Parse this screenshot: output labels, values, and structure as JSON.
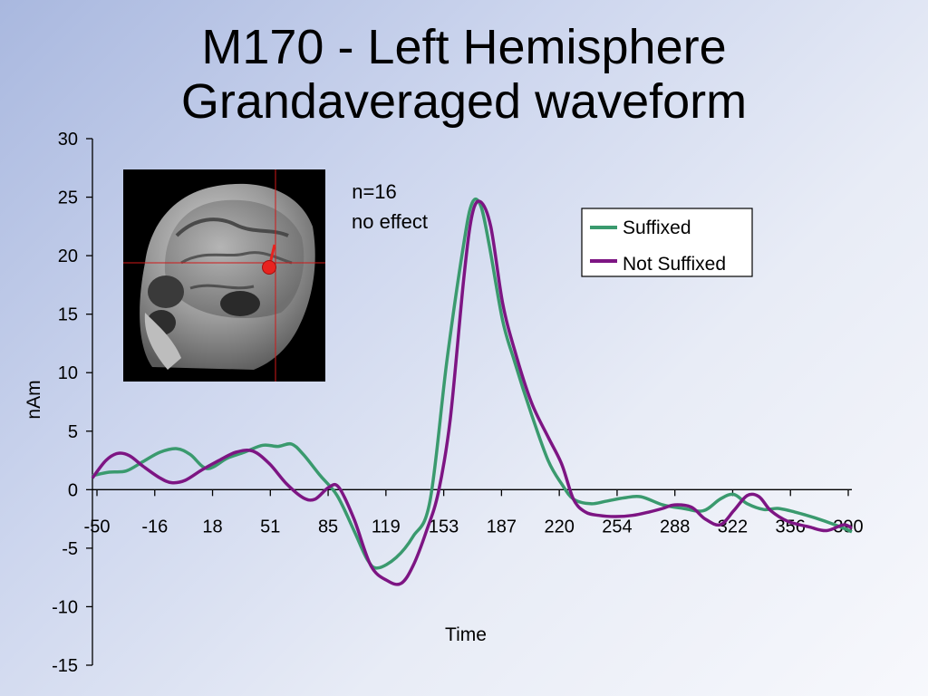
{
  "slide": {
    "title_line1": "M170 - Left Hemisphere",
    "title_line2": "Grandaveraged waveform"
  },
  "annotation": {
    "line1": "n=16",
    "line2": "no effect"
  },
  "brain_image": {
    "icon": "mri-brain-sagittal-icon",
    "marker_color": "#e8231f",
    "crosshair_color": "#d01818"
  },
  "chart_data": {
    "type": "line",
    "title": "",
    "xlabel": "Time",
    "ylabel": "nAm",
    "categories": [
      "-50",
      "-16",
      "18",
      "51",
      "85",
      "119",
      "153",
      "187",
      "220",
      "254",
      "288",
      "322",
      "356",
      "390"
    ],
    "xlim": [
      -50,
      400
    ],
    "ylim": [
      -15,
      30
    ],
    "yticks": [
      -15,
      -10,
      -5,
      0,
      5,
      10,
      15,
      20,
      25,
      30
    ],
    "grid": false,
    "legend_position": "right",
    "series": [
      {
        "name": "Suffixed",
        "color": "#3a9a6e",
        "points": [
          [
            -50,
            1.2
          ],
          [
            -40,
            1.5
          ],
          [
            -30,
            1.6
          ],
          [
            -20,
            2.4
          ],
          [
            -10,
            3.2
          ],
          [
            0,
            3.5
          ],
          [
            8,
            3.0
          ],
          [
            18,
            1.8
          ],
          [
            30,
            2.7
          ],
          [
            40,
            3.2
          ],
          [
            51,
            3.8
          ],
          [
            60,
            3.7
          ],
          [
            68,
            3.9
          ],
          [
            75,
            3.0
          ],
          [
            85,
            1.2
          ],
          [
            95,
            -0.5
          ],
          [
            105,
            -3.5
          ],
          [
            113,
            -6.0
          ],
          [
            119,
            -6.7
          ],
          [
            130,
            -5.8
          ],
          [
            140,
            -4.0
          ],
          [
            150,
            -1.0
          ],
          [
            160,
            11.0
          ],
          [
            170,
            21.0
          ],
          [
            175,
            24.5
          ],
          [
            180,
            24.3
          ],
          [
            185,
            21.0
          ],
          [
            193,
            14.5
          ],
          [
            200,
            11.0
          ],
          [
            210,
            6.5
          ],
          [
            220,
            2.5
          ],
          [
            228,
            0.5
          ],
          [
            235,
            -0.8
          ],
          [
            245,
            -1.2
          ],
          [
            254,
            -1.0
          ],
          [
            265,
            -0.7
          ],
          [
            275,
            -0.6
          ],
          [
            288,
            -1.3
          ],
          [
            300,
            -1.6
          ],
          [
            312,
            -1.8
          ],
          [
            322,
            -0.8
          ],
          [
            330,
            -0.4
          ],
          [
            338,
            -1.2
          ],
          [
            348,
            -1.7
          ],
          [
            356,
            -1.6
          ],
          [
            366,
            -1.9
          ],
          [
            378,
            -2.4
          ],
          [
            390,
            -3.0
          ],
          [
            400,
            -3.6
          ]
        ]
      },
      {
        "name": "Not Suffixed",
        "color": "#7d1583",
        "points": [
          [
            -50,
            1.0
          ],
          [
            -42,
            2.5
          ],
          [
            -35,
            3.1
          ],
          [
            -28,
            2.9
          ],
          [
            -20,
            2.0
          ],
          [
            -10,
            1.0
          ],
          [
            -3,
            0.6
          ],
          [
            5,
            0.8
          ],
          [
            15,
            1.7
          ],
          [
            25,
            2.5
          ],
          [
            35,
            3.2
          ],
          [
            45,
            3.3
          ],
          [
            55,
            2.2
          ],
          [
            65,
            0.5
          ],
          [
            75,
            -0.7
          ],
          [
            82,
            -0.8
          ],
          [
            90,
            0.2
          ],
          [
            96,
            0.2
          ],
          [
            105,
            -2.5
          ],
          [
            115,
            -6.5
          ],
          [
            125,
            -7.8
          ],
          [
            133,
            -8.0
          ],
          [
            140,
            -6.5
          ],
          [
            148,
            -3.5
          ],
          [
            155,
            -0.2
          ],
          [
            162,
            6.0
          ],
          [
            170,
            18.0
          ],
          [
            175,
            23.5
          ],
          [
            180,
            24.6
          ],
          [
            186,
            22.5
          ],
          [
            193,
            16.0
          ],
          [
            200,
            12.0
          ],
          [
            210,
            7.5
          ],
          [
            220,
            4.5
          ],
          [
            228,
            2.2
          ],
          [
            235,
            -0.8
          ],
          [
            242,
            -1.9
          ],
          [
            250,
            -2.2
          ],
          [
            260,
            -2.3
          ],
          [
            270,
            -2.2
          ],
          [
            280,
            -1.9
          ],
          [
            288,
            -1.6
          ],
          [
            295,
            -1.3
          ],
          [
            305,
            -1.5
          ],
          [
            313,
            -2.5
          ],
          [
            322,
            -3.0
          ],
          [
            330,
            -1.8
          ],
          [
            338,
            -0.5
          ],
          [
            345,
            -0.6
          ],
          [
            352,
            -1.8
          ],
          [
            362,
            -2.7
          ],
          [
            375,
            -3.2
          ],
          [
            385,
            -3.5
          ],
          [
            395,
            -3.0
          ],
          [
            400,
            -3.3
          ]
        ]
      }
    ]
  }
}
